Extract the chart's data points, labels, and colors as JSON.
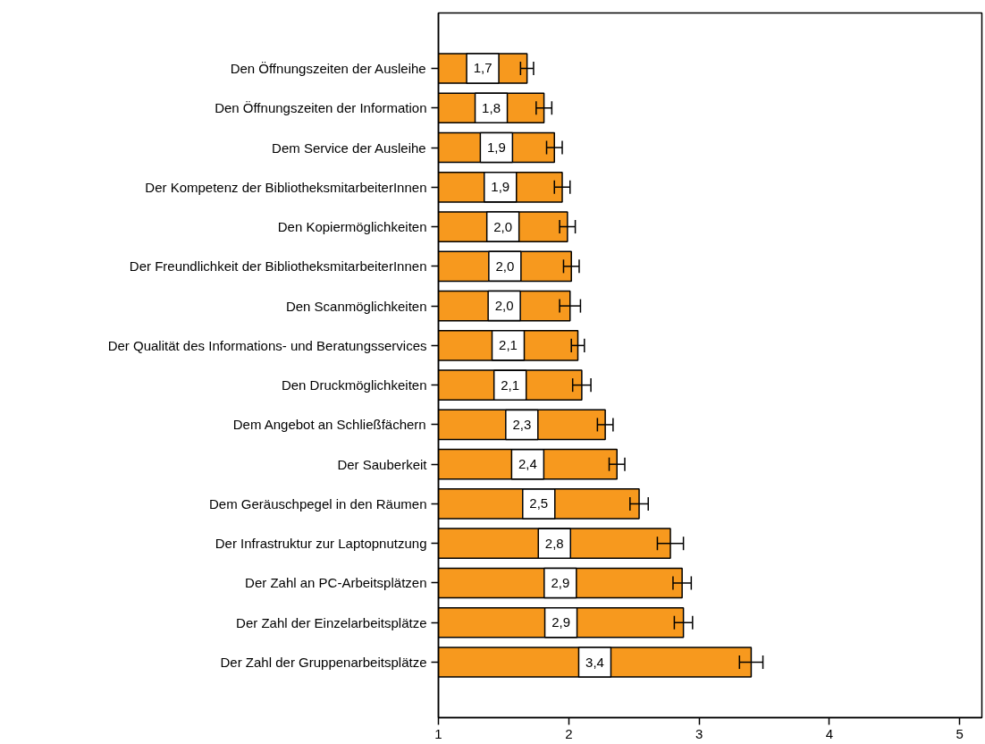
{
  "chart_data": {
    "type": "bar",
    "orientation": "horizontal",
    "categories": [
      "Den Öffnungszeiten der Ausleihe",
      "Den Öffnungszeiten der Information",
      "Dem Service der Ausleihe",
      "Der Kompetenz der BibliotheksmitarbeiterInnen",
      "Den Kopiermöglichkeiten",
      "Der Freundlichkeit der BibliotheksmitarbeiterInnen",
      "Den Scanmöglichkeiten",
      "Der Qualität des Informations- und Beratungsservices",
      "Den Druckmöglichkeiten",
      "Dem Angebot an Schließfächern",
      "Der Sauberkeit",
      "Dem Geräuschpegel in den Räumen",
      "Der Infrastruktur zur Laptopnutzung",
      "Der Zahl an PC-Arbeitsplätzen",
      "Der Zahl der Einzelarbeitsplätze",
      "Der Zahl der Gruppenarbeitsplätze"
    ],
    "values": [
      1.68,
      1.81,
      1.89,
      1.95,
      1.99,
      2.02,
      2.01,
      2.07,
      2.1,
      2.28,
      2.37,
      2.54,
      2.78,
      2.87,
      2.88,
      3.4
    ],
    "errors": [
      0.05,
      0.06,
      0.06,
      0.06,
      0.06,
      0.06,
      0.08,
      0.05,
      0.07,
      0.06,
      0.06,
      0.07,
      0.1,
      0.07,
      0.07,
      0.09
    ],
    "value_labels": [
      "1,7",
      "1,8",
      "1,9",
      "1,9",
      "2,0",
      "2,0",
      "2,0",
      "2,1",
      "2,1",
      "2,3",
      "2,4",
      "2,5",
      "2,8",
      "2,9",
      "2,9",
      "3,4"
    ],
    "color": "#f7991e",
    "xlim": [
      1,
      5.17
    ],
    "xticks": [
      1,
      2,
      3,
      4,
      5
    ]
  }
}
